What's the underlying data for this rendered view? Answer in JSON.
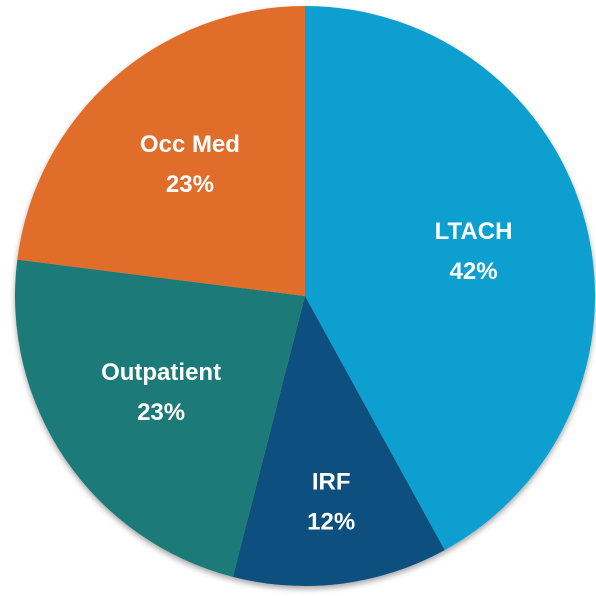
{
  "chart_data": {
    "type": "pie",
    "categories": [
      "LTACH",
      "IRF",
      "Outpatient",
      "Occ Med"
    ],
    "values": [
      42,
      12,
      23,
      23
    ],
    "value_labels": [
      "42%",
      "12%",
      "23%",
      "23%"
    ],
    "colors": [
      "#0e9fd0",
      "#0d4f7e",
      "#1a7a78",
      "#e06d2a"
    ]
  }
}
